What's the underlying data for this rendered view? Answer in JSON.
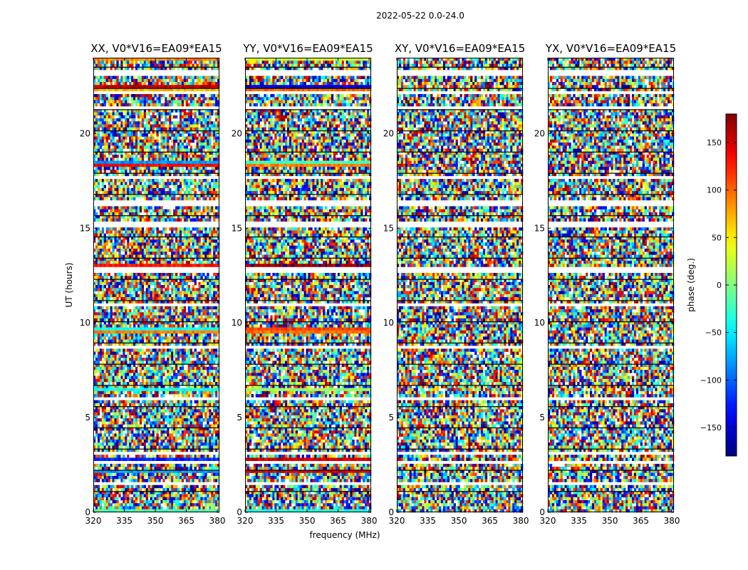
{
  "chart_data": {
    "type": "heatmap",
    "suptitle": "2022-05-22 0.0-24.0",
    "xlabel": "frequency (MHz)",
    "ylabel": "UT (hours)",
    "xlim": [
      320,
      381
    ],
    "ylim": [
      0,
      24
    ],
    "xticks": [
      "320",
      "335",
      "350",
      "365",
      "380"
    ],
    "xtick_values": [
      320,
      335,
      350,
      365,
      380
    ],
    "yticks": [
      "0",
      "5",
      "10",
      "15",
      "20"
    ],
    "ytick_values": [
      0,
      5,
      10,
      15,
      20
    ],
    "panels": [
      {
        "title": "XX, V0*V16=EA09*EA15",
        "polarization": "XX"
      },
      {
        "title": "YY, V0*V16=EA09*EA15",
        "polarization": "YY"
      },
      {
        "title": "XY, V0*V16=EA09*EA15",
        "polarization": "XY"
      },
      {
        "title": "YX, V0*V16=EA09*EA15",
        "polarization": "YX"
      }
    ],
    "colorbar": {
      "label": "phase (deg.)",
      "range": [
        -180,
        180
      ],
      "ticks": [
        "−150",
        "−100",
        "−50",
        "0",
        "50",
        "100",
        "150"
      ],
      "tick_values": [
        -150,
        -100,
        -50,
        0,
        50,
        100,
        150
      ],
      "colormap": "jet"
    },
    "flagged_rows_ut_hours": [
      1.5,
      2.7,
      3.1,
      6.0,
      8.7,
      10.9,
      12.8,
      15.2,
      16.3,
      17.7,
      21.3,
      22.1,
      23.2
    ],
    "coherent_phase_rows": [
      {
        "ut": 0.1,
        "panels": [
          "XX",
          "YY"
        ]
      },
      {
        "ut": 2.2,
        "panels": [
          "XX",
          "YY"
        ]
      },
      {
        "ut": 2.8,
        "panels": [
          "XX",
          "YY"
        ]
      },
      {
        "ut": 6.5,
        "panels": [
          "XX",
          "YY"
        ]
      },
      {
        "ut": 9.6,
        "panels": [
          "XX",
          "YY"
        ]
      },
      {
        "ut": 13.0,
        "panels": [
          "XX",
          "YY"
        ]
      },
      {
        "ut": 16.2,
        "panels": [
          "XX",
          "YY"
        ]
      },
      {
        "ut": 18.4,
        "panels": [
          "XX",
          "YY"
        ]
      },
      {
        "ut": 22.4,
        "panels": [
          "XX",
          "YY"
        ]
      },
      {
        "ut": 23.3,
        "panels": [
          "XX",
          "YY"
        ]
      },
      {
        "ut": 23.9,
        "panels": [
          "XX",
          "YY"
        ]
      }
    ]
  }
}
